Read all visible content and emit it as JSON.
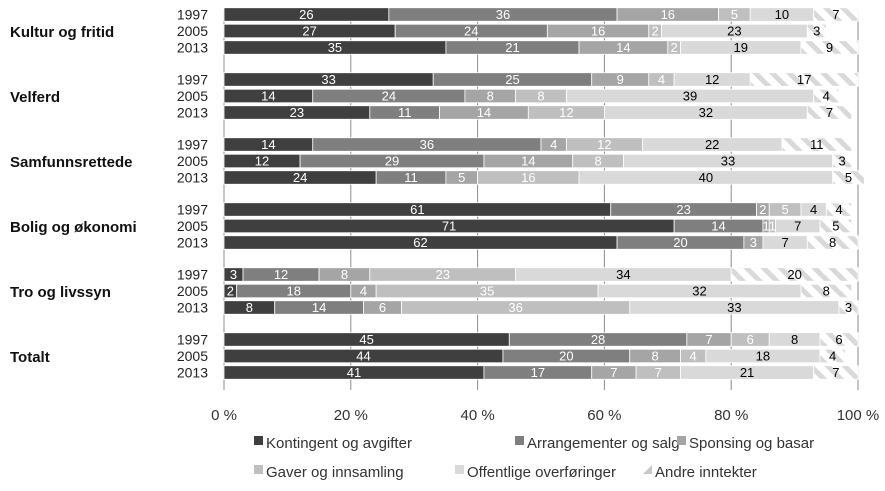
{
  "chart_data": {
    "type": "bar",
    "orientation": "horizontal",
    "stacked": true,
    "percent_stacked": true,
    "xlim": [
      0,
      100
    ],
    "x_ticks": [
      "0 %",
      "20 %",
      "40 %",
      "60 %",
      "80 %",
      "100 %"
    ],
    "grid": true,
    "legend_position": "bottom",
    "series": [
      {
        "name": "Kontingent og avgifter",
        "color": "#3f3f3f",
        "pattern": "solid"
      },
      {
        "name": "Arrangementer og salg",
        "color": "#7f7f7f",
        "pattern": "solid"
      },
      {
        "name": "Sponsing og basar",
        "color": "#a5a5a5",
        "pattern": "solid"
      },
      {
        "name": "Gaver og innsamling",
        "color": "#bfbfbf",
        "pattern": "solid"
      },
      {
        "name": "Offentlige overføringer",
        "color": "#d9d9d9",
        "pattern": "solid"
      },
      {
        "name": "Andre inntekter",
        "color": "#f2f2f2",
        "pattern": "diagonal"
      }
    ],
    "groups": [
      {
        "name": "Kultur og fritid",
        "bars": [
          {
            "year": "1997",
            "values": [
              26,
              36,
              16,
              5,
              10,
              7
            ]
          },
          {
            "year": "2005",
            "values": [
              27,
              24,
              16,
              2,
              23,
              3
            ]
          },
          {
            "year": "2013",
            "values": [
              35,
              21,
              14,
              2,
              19,
              9
            ]
          }
        ]
      },
      {
        "name": "Velferd",
        "bars": [
          {
            "year": "1997",
            "values": [
              33,
              25,
              9,
              4,
              12,
              17
            ]
          },
          {
            "year": "2005",
            "values": [
              14,
              24,
              8,
              8,
              39,
              4
            ]
          },
          {
            "year": "2013",
            "values": [
              23,
              11,
              14,
              12,
              32,
              7
            ]
          }
        ]
      },
      {
        "name": "Samfunnsrettede",
        "bars": [
          {
            "year": "1997",
            "values": [
              14,
              36,
              4,
              12,
              22,
              11
            ]
          },
          {
            "year": "2005",
            "values": [
              12,
              29,
              14,
              8,
              33,
              3
            ]
          },
          {
            "year": "2013",
            "values": [
              24,
              11,
              5,
              16,
              40,
              5
            ]
          }
        ]
      },
      {
        "name": "Bolig og økonomi",
        "bars": [
          {
            "year": "1997",
            "values": [
              61,
              23,
              2,
              5,
              4,
              4
            ]
          },
          {
            "year": "2005",
            "values": [
              71,
              14,
              1,
              1,
              7,
              5
            ]
          },
          {
            "year": "2013",
            "values": [
              62,
              20,
              3,
              null,
              7,
              8
            ]
          }
        ]
      },
      {
        "name": "Tro og livssyn",
        "bars": [
          {
            "year": "1997",
            "values": [
              3,
              12,
              8,
              23,
              34,
              20
            ]
          },
          {
            "year": "2005",
            "values": [
              2,
              18,
              4,
              35,
              32,
              8
            ]
          },
          {
            "year": "2013",
            "values": [
              8,
              14,
              6,
              36,
              33,
              3
            ]
          }
        ]
      },
      {
        "name": "Totalt",
        "bars": [
          {
            "year": "1997",
            "values": [
              45,
              28,
              7,
              6,
              8,
              6
            ]
          },
          {
            "year": "2005",
            "values": [
              44,
              20,
              8,
              4,
              18,
              4
            ]
          },
          {
            "year": "2013",
            "values": [
              41,
              17,
              7,
              7,
              21,
              7
            ]
          }
        ]
      }
    ]
  }
}
